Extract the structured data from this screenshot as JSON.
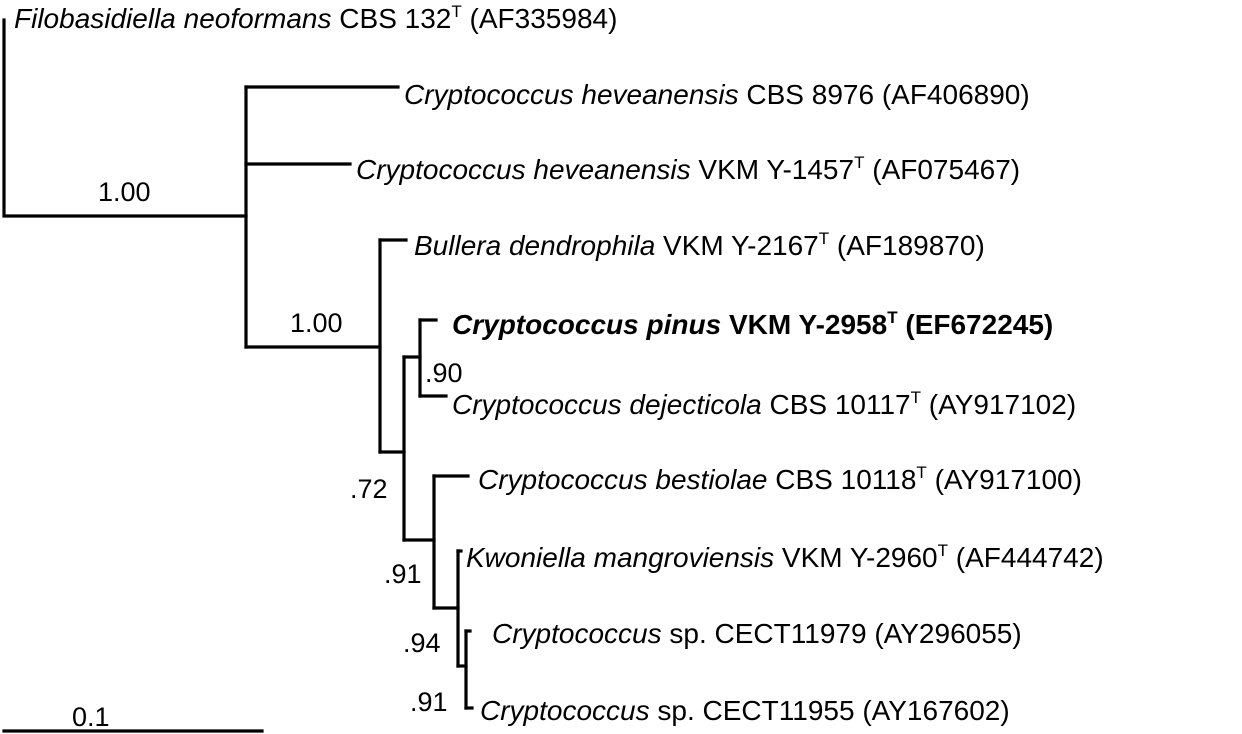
{
  "taxa": [
    {
      "genus_species": "Filobasidiella neoformans",
      "strain": "CBS 132",
      "type_strain": true,
      "accession": "(AF335984)",
      "highlighted": false
    },
    {
      "genus_species": "Cryptococcus heveanensis",
      "strain": "CBS 8976",
      "type_strain": false,
      "accession": "(AF406890)",
      "highlighted": false
    },
    {
      "genus_species": "Cryptococcus heveanensis",
      "strain": "VKM Y-1457",
      "type_strain": true,
      "accession": "(AF075467)",
      "highlighted": false
    },
    {
      "genus_species": "Bullera dendrophila",
      "strain": "VKM Y-2167",
      "type_strain": true,
      "accession": "(AF189870)",
      "highlighted": false
    },
    {
      "genus_species": "Cryptococcus pinus",
      "strain": "VKM Y-2958",
      "type_strain": true,
      "accession": "(EF672245)",
      "highlighted": true
    },
    {
      "genus_species": "Cryptococcus dejecticola",
      "strain": "CBS 10117",
      "type_strain": true,
      "accession": "(AY917102)",
      "highlighted": false
    },
    {
      "genus_species": "Cryptococcus bestiolae",
      "strain": "CBS 10118",
      "type_strain": true,
      "accession": "(AY917100)",
      "highlighted": false
    },
    {
      "genus_species": "Kwoniella mangroviensis",
      "strain": "VKM Y-2960",
      "type_strain": true,
      "accession": "(AF444742)",
      "highlighted": false
    },
    {
      "genus_species": "Cryptococcus",
      "strain": "sp. CECT11979",
      "type_strain": false,
      "accession": "(AY296055)",
      "highlighted": false
    },
    {
      "genus_species": "Cryptococcus",
      "strain": "sp. CECT11955",
      "type_strain": false,
      "accession": "(AY167602)",
      "highlighted": false
    }
  ],
  "type_marker": "T",
  "support_values": {
    "root_clade": "1.00",
    "ingroup_clade": "1.00",
    "pinus_dejecticola": ".90",
    "bullera_clade": ".72",
    "bestiolae_clade": ".91",
    "kwoniella_clade": ".94",
    "cryptococcus_sp_clade": ".91"
  },
  "scale_bar": {
    "label": "0.1",
    "length": 0.1
  }
}
